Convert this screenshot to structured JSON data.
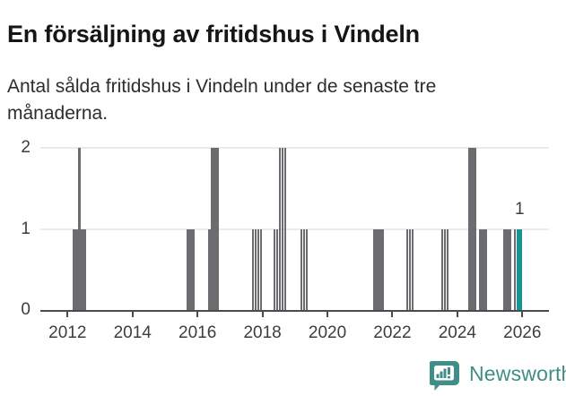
{
  "header": {
    "title": "En försäljning av fritidshus i Vindeln",
    "subtitle": "Antal sålda fritidshus i Vindeln under de senaste tre månaderna."
  },
  "footer": {
    "brand": "Newsworthy",
    "logo_icon": "speech-bubble-bar-chart-icon",
    "logo_color": "#3f8e88"
  },
  "chart_data": {
    "type": "bar",
    "title": "En försäljning av fritidshus i Vindeln",
    "subtitle": "Antal sålda fritidshus i Vindeln under de senaste tre månaderna.",
    "x_start": "2012-01",
    "x_end": "2026-03",
    "xticks": [
      "2012",
      "2014",
      "2016",
      "2018",
      "2020",
      "2022",
      "2024",
      "2026"
    ],
    "yticks": [
      0,
      1,
      2
    ],
    "ylim": [
      0,
      2
    ],
    "grid": true,
    "legend": "none",
    "colors": {
      "bar": "#6b6b70",
      "highlight": "#18948e",
      "gridline": "#eaeaea",
      "axis": "#4b4b4b",
      "tick_label": "#3d3d3d"
    },
    "annotation": {
      "text": "1"
    },
    "points": [
      {
        "month": "2012-03",
        "value": 1
      },
      {
        "month": "2012-04",
        "value": 1
      },
      {
        "month": "2012-05",
        "value": 2
      },
      {
        "month": "2012-06",
        "value": 1
      },
      {
        "month": "2012-07",
        "value": 1
      },
      {
        "month": "2015-09",
        "value": 1
      },
      {
        "month": "2015-10",
        "value": 1
      },
      {
        "month": "2015-11",
        "value": 1
      },
      {
        "month": "2016-05",
        "value": 1
      },
      {
        "month": "2016-06",
        "value": 2
      },
      {
        "month": "2016-07",
        "value": 2
      },
      {
        "month": "2016-08",
        "value": 2
      },
      {
        "month": "2017-09",
        "value": 1,
        "striped": true
      },
      {
        "month": "2017-10",
        "value": 1,
        "striped": true
      },
      {
        "month": "2017-11",
        "value": 1,
        "striped": true
      },
      {
        "month": "2017-12",
        "value": 1,
        "striped": true
      },
      {
        "month": "2018-05",
        "value": 1,
        "striped": true
      },
      {
        "month": "2018-06",
        "value": 1,
        "striped": true
      },
      {
        "month": "2018-07",
        "value": 2,
        "striped": true
      },
      {
        "month": "2018-08",
        "value": 2,
        "striped": true
      },
      {
        "month": "2018-09",
        "value": 2,
        "striped": true
      },
      {
        "month": "2019-03",
        "value": 1,
        "striped": true
      },
      {
        "month": "2019-04",
        "value": 1,
        "striped": true
      },
      {
        "month": "2019-05",
        "value": 1,
        "striped": true
      },
      {
        "month": "2021-06",
        "value": 1
      },
      {
        "month": "2021-07",
        "value": 1
      },
      {
        "month": "2021-08",
        "value": 1
      },
      {
        "month": "2021-09",
        "value": 1
      },
      {
        "month": "2022-06",
        "value": 1,
        "striped": true
      },
      {
        "month": "2022-07",
        "value": 1,
        "striped": true
      },
      {
        "month": "2022-08",
        "value": 1,
        "striped": true
      },
      {
        "month": "2023-07",
        "value": 1,
        "striped": true
      },
      {
        "month": "2023-08",
        "value": 1,
        "striped": true
      },
      {
        "month": "2023-09",
        "value": 1,
        "striped": true
      },
      {
        "month": "2024-05",
        "value": 2
      },
      {
        "month": "2024-06",
        "value": 2
      },
      {
        "month": "2024-07",
        "value": 2
      },
      {
        "month": "2024-09",
        "value": 1
      },
      {
        "month": "2024-10",
        "value": 1
      },
      {
        "month": "2024-11",
        "value": 1
      },
      {
        "month": "2025-06",
        "value": 1
      },
      {
        "month": "2025-07",
        "value": 1
      },
      {
        "month": "2025-08",
        "value": 1
      },
      {
        "month": "2025-10",
        "value": 1,
        "striped": true
      },
      {
        "month": "2025-11",
        "value": 1,
        "highlight": true
      },
      {
        "month": "2025-12",
        "value": 1,
        "highlight": true
      }
    ]
  }
}
